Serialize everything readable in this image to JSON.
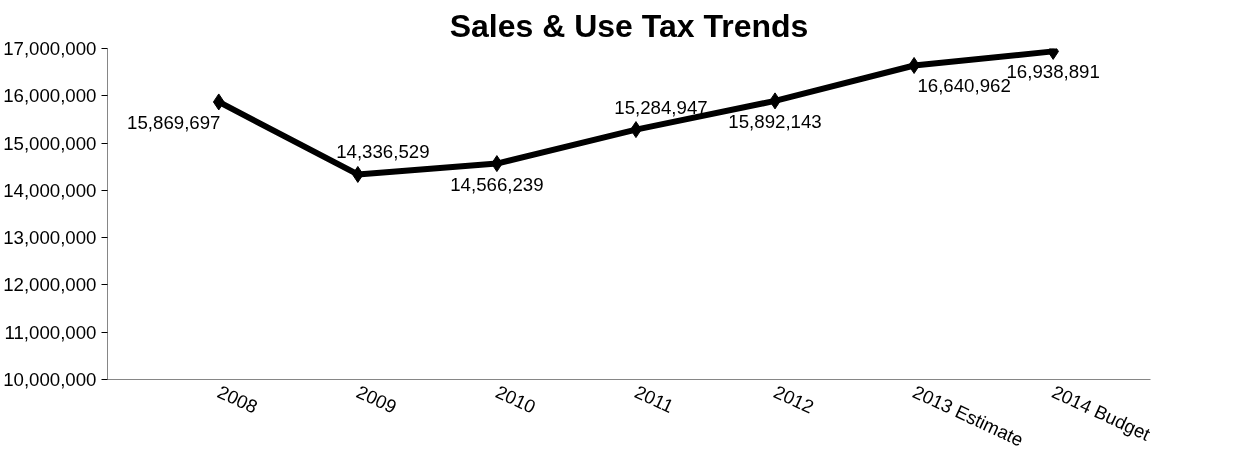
{
  "chart_data": {
    "type": "line",
    "title": "Sales & Use Tax Trends",
    "categories": [
      "2008",
      "2009",
      "2010",
      "2011",
      "2012",
      "2013 Estimate",
      "2014 Budget"
    ],
    "series": [
      {
        "color": "#000000",
        "values": [
          15869697,
          14336529,
          14566239,
          15284947,
          15892143,
          16640962,
          16938891
        ]
      }
    ],
    "ylim": [
      10000000,
      17000000
    ],
    "yticks": [
      {
        "value": 10000000,
        "label": "10,000,000"
      },
      {
        "value": 11000000,
        "label": "11,000,000"
      },
      {
        "value": 12000000,
        "label": "12,000,000"
      },
      {
        "value": 13000000,
        "label": "13,000,000"
      },
      {
        "value": 14000000,
        "label": "14,000,000"
      },
      {
        "value": 15000000,
        "label": "15,000,000"
      },
      {
        "value": 16000000,
        "label": "16,000,000"
      },
      {
        "value": 17000000,
        "label": "17,000,000"
      }
    ],
    "value_labels": [
      "15,869,697",
      "14,336,529",
      "14,566,239",
      "15,284,947",
      "15,892,143",
      "16,640,962",
      "16,938,891"
    ],
    "grid": false,
    "marker": "diamond",
    "line_style": "solid"
  }
}
